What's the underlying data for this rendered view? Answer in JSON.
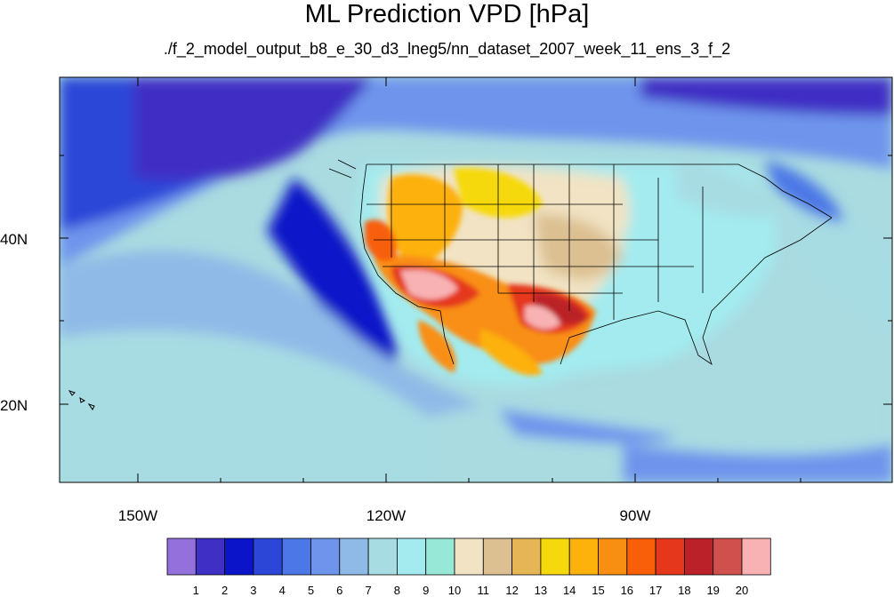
{
  "title": "ML Prediction VPD [hPa]",
  "subtitle": "./f_2_model_output_b8_e_30_d3_lneg5/nn_dataset_2007_week_11_ens_3_f_2",
  "lat_labels": [
    "40N",
    "20N"
  ],
  "lon_labels": [
    "150W",
    "120W",
    "90W"
  ],
  "colorbar": {
    "labels": [
      "1",
      "2",
      "3",
      "4",
      "5",
      "6",
      "7",
      "8",
      "9",
      "10",
      "11",
      "12",
      "13",
      "14",
      "15",
      "16",
      "17",
      "18",
      "19",
      "20"
    ],
    "colors": [
      "#9370db",
      "#3f2fc4",
      "#0b14c8",
      "#2c47d8",
      "#4c77e6",
      "#6e94ec",
      "#8fbae7",
      "#a7dce3",
      "#a3ebef",
      "#98e8d8",
      "#f1e3c3",
      "#dcc092",
      "#e6b556",
      "#f6d90d",
      "#fdb10b",
      "#f98f12",
      "#f85f08",
      "#e5371b",
      "#bb2128",
      "#d0504e",
      "#f8b2b3"
    ]
  },
  "map": {
    "ocean_color": "#a9dbe1",
    "deep_ocean_color": "#2c47d8",
    "land_color": "#8fbae7"
  }
}
